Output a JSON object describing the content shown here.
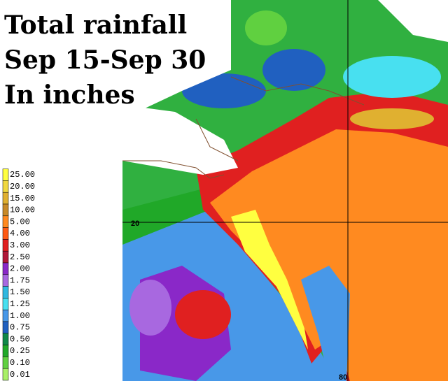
{
  "title_lines": [
    "Total rainfall",
    "Sep 15-Sep 30",
    "In inches"
  ],
  "legend": [
    {
      "label": "25.00",
      "color": "#ffff40"
    },
    {
      "label": "20.00",
      "color": "#f0d840"
    },
    {
      "label": "15.00",
      "color": "#e0b030"
    },
    {
      "label": "10.00",
      "color": "#c88a28"
    },
    {
      "label": "5.00",
      "color": "#ff8a20"
    },
    {
      "label": "4.00",
      "color": "#ff5a14"
    },
    {
      "label": "3.00",
      "color": "#e02020"
    },
    {
      "label": "2.50",
      "color": "#b01838"
    },
    {
      "label": "2.00",
      "color": "#8a28c8"
    },
    {
      "label": "1.75",
      "color": "#a868e0"
    },
    {
      "label": "1.50",
      "color": "#30b8e0"
    },
    {
      "label": "1.25",
      "color": "#48e0f0"
    },
    {
      "label": "1.00",
      "color": "#4898e8"
    },
    {
      "label": "0.75",
      "color": "#2060c0"
    },
    {
      "label": "0.50",
      "color": "#108848"
    },
    {
      "label": "0.25",
      "color": "#20a828"
    },
    {
      "label": "0.10",
      "color": "#60d040"
    },
    {
      "label": "0.01",
      "color": "#a8f068"
    }
  ],
  "grid_labels": [
    "20",
    "80"
  ]
}
